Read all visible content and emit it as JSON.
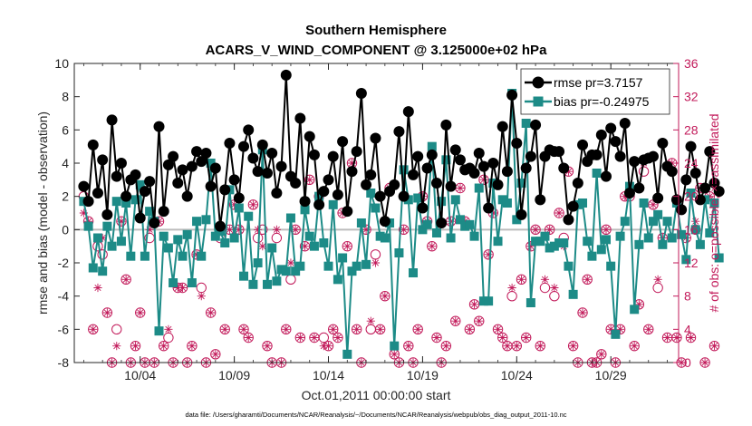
{
  "chart_data": {
    "type": "line",
    "title_line1": "Southern Hemisphere",
    "title_line2": "ACARS_V_WIND_COMPONENT @ 3.125000e+02 hPa",
    "xlabel": "Oct.01,2011 00:00:00 start",
    "ylabel_left": "rmse and bias (model - observation)",
    "ylabel_right": "# of obs: o=possible; ×=assimilated",
    "footnote": "data file: /Users/gharamti/Documents/NCAR/Reanalysis/~/Documents/NCAR/Reanalysis/webpub/obs_diag_output_2011-10.nc",
    "xlim": [
      0.5,
      32.6
    ],
    "ylim_left": [
      -8,
      10
    ],
    "ylim_right": [
      0,
      36
    ],
    "yticks_left": [
      "-8",
      "-6",
      "-4",
      "-2",
      "0",
      "2",
      "4",
      "6",
      "8",
      "10"
    ],
    "yticks_right": [
      "0",
      "4",
      "8",
      "12",
      "16",
      "20",
      "24",
      "28",
      "32",
      "36"
    ],
    "xticks": [
      {
        "day": 4,
        "label": "10/04"
      },
      {
        "day": 9,
        "label": "10/09"
      },
      {
        "day": 14,
        "label": "10/14"
      },
      {
        "day": 19,
        "label": "10/19"
      },
      {
        "day": 24,
        "label": "10/24"
      },
      {
        "day": 29,
        "label": "10/29"
      }
    ],
    "colors": {
      "rmse": "#000000",
      "bias": "#1d8b87",
      "obs": "#c21a5a",
      "zero_line": "#bcbcbc"
    },
    "series": [
      {
        "name": "rmse",
        "legend": "rmse pr=3.7157",
        "values": [
          2.6,
          1.7,
          5.1,
          2.2,
          4.2,
          0.9,
          6.6,
          3.2,
          4.0,
          2.0,
          3.0,
          3.3,
          0.7,
          2.3,
          2.9,
          0.4,
          6.2,
          1.1,
          3.9,
          4.4,
          2.8,
          3.6,
          2.0,
          3.8,
          4.7,
          4.1,
          4.6,
          2.6,
          3.7,
          0.2,
          2.4,
          5.2,
          3.0,
          1.9,
          5.0,
          6.0,
          4.3,
          3.5,
          5.1,
          3.4,
          4.6,
          2.2,
          3.8,
          9.3,
          3.2,
          2.8,
          6.7,
          1.7,
          5.6,
          4.5,
          1.5,
          2.3,
          3.0,
          4.4,
          2.1,
          5.3,
          1.1,
          3.5,
          4.7,
          8.2,
          2.7,
          3.3,
          5.5,
          2.0,
          0.5,
          2.3,
          2.7,
          5.9,
          2.0,
          7.1,
          3.3,
          4.4,
          1.3,
          3.7,
          4.5,
          2.8,
          0.4,
          6.3,
          2.6,
          4.8,
          4.2,
          3.6,
          3.7,
          3.4,
          4.6,
          3.8,
          1.3,
          4.0,
          2.7,
          6.2,
          3.5,
          8.1,
          5.2,
          0.9,
          3.7,
          4.4,
          6.3,
          1.8,
          4.4,
          4.8,
          4.7,
          4.7,
          3.7,
          0.6,
          1.4,
          2.8,
          5.1,
          4.1,
          4.5,
          4.5,
          5.7,
          3.2,
          6.1,
          5.3,
          4.4,
          6.4,
          2.2,
          4.1,
          2.5,
          4.2,
          4.3,
          4.4,
          1.9,
          5.2,
          3.8,
          3.5,
          1.8,
          1.2,
          3.0,
          5.0,
          3.4,
          1.8,
          2.5,
          4.7,
          2.8,
          2.3
        ]
      },
      {
        "name": "bias",
        "legend": "bias pr=-0.24975",
        "values": [
          1.7,
          0.2,
          -2.3,
          -0.5,
          -2.5,
          0.2,
          -1.0,
          1.7,
          -0.7,
          1.6,
          -1.6,
          1.8,
          2.7,
          -1.6,
          1.1,
          0.5,
          -6.1,
          -0.4,
          -1.1,
          -3.2,
          -0.6,
          -1.6,
          -0.3,
          -3.2,
          0.5,
          -1.6,
          0.6,
          4.0,
          -0.4,
          -0.1,
          -0.8,
          2.4,
          -0.5,
          1.3,
          -2.8,
          0.8,
          -3.3,
          -2.0,
          4.8,
          -3.3,
          -1.1,
          -3.1,
          -2.4,
          -2.5,
          0.7,
          -2.5,
          -2.2,
          1.2,
          -0.4,
          -1.0,
          2.0,
          -0.8,
          -2.2,
          1.5,
          -3.0,
          -1.7,
          -7.5,
          -2.5,
          -2.2,
          0.4,
          -2.1,
          2.2,
          1.3,
          -0.4,
          -0.5,
          0.4,
          -7.0,
          -1.4,
          3.6,
          1.8,
          -2.6,
          1.9,
          0.0,
          0.3,
          5.0,
          -0.2,
          1.7,
          4.2,
          -0.5,
          1.8,
          0.6,
          0.2,
          0.3,
          -0.4,
          2.5,
          -4.3,
          -4.3,
          2.8,
          -0.7,
          1.8,
          1.6,
          8.2,
          0.6,
          2.8,
          6.4,
          -4.4,
          -0.7,
          -0.7,
          -0.4,
          -1.1,
          -1.0,
          -0.8,
          -0.8,
          -2.2,
          -3.9,
          1.5,
          1.6,
          -0.7,
          -1.6,
          3.4,
          -1.2,
          -0.6,
          -2.2,
          -6.3,
          -0.4,
          0.5,
          2.6,
          -4.8,
          -0.9,
          1.6,
          -0.5,
          0.5,
          0.9,
          -0.9,
          0.5,
          -0.5,
          1.6,
          -0.3,
          -1.8,
          2.2,
          0.0,
          -0.9,
          1.8,
          -0.2,
          1.6,
          -1.7
        ]
      }
    ],
    "obs_possible": [
      20,
      17,
      4,
      14,
      13,
      6,
      0,
      4,
      17,
      10,
      0,
      2,
      6,
      0,
      15,
      0,
      17,
      2,
      3,
      0,
      9,
      9,
      0,
      2,
      13,
      9,
      0,
      6,
      1,
      15,
      4,
      16,
      19,
      16,
      4,
      3,
      19,
      15,
      16,
      2,
      0,
      15,
      0,
      4,
      10,
      16,
      3,
      14,
      22,
      3,
      20,
      3,
      2,
      4,
      3,
      18,
      14,
      24,
      4,
      0,
      16,
      4,
      13,
      4,
      8,
      21,
      1,
      0,
      16,
      2,
      0,
      4,
      20,
      17,
      14,
      3,
      0,
      2,
      17,
      5,
      21,
      17,
      4,
      7,
      5,
      22,
      13,
      18,
      4,
      3,
      2,
      8,
      2,
      10,
      3,
      14,
      16,
      2,
      9,
      16,
      8,
      18,
      15,
      23,
      2,
      0,
      6,
      10,
      0,
      0,
      1,
      16,
      4,
      0,
      4,
      20,
      20,
      2,
      7,
      23,
      4,
      19,
      9,
      15,
      3,
      24,
      3,
      0,
      15,
      3,
      16,
      21,
      0,
      20,
      2
    ],
    "obs_assimilated": [
      18,
      17,
      4,
      9,
      15,
      6,
      0,
      2,
      17,
      10,
      0,
      2,
      6,
      0,
      16,
      0,
      17,
      2,
      4,
      0,
      9,
      9,
      0,
      2,
      13,
      8,
      0,
      6,
      1,
      16,
      4,
      16,
      19,
      16,
      4,
      3,
      19,
      16,
      14,
      2,
      0,
      16,
      0,
      4,
      12,
      16,
      3,
      14,
      22,
      3,
      20,
      2,
      2,
      4,
      3,
      18,
      14,
      24,
      4,
      0,
      16,
      5,
      12,
      4,
      8,
      21,
      1,
      0,
      16,
      2,
      0,
      4,
      20,
      17,
      14,
      3,
      0,
      2,
      17,
      5,
      21,
      17,
      4,
      7,
      5,
      22,
      13,
      18,
      4,
      3,
      2,
      9,
      2,
      10,
      3,
      14,
      16,
      2,
      10,
      16,
      9,
      18,
      14,
      23,
      2,
      0,
      6,
      10,
      0,
      0,
      1,
      16,
      4,
      0,
      4,
      20,
      21,
      2,
      7,
      24,
      4,
      19,
      10,
      15,
      3,
      24,
      3,
      0,
      15,
      3,
      17,
      21,
      0,
      20,
      2
    ]
  }
}
